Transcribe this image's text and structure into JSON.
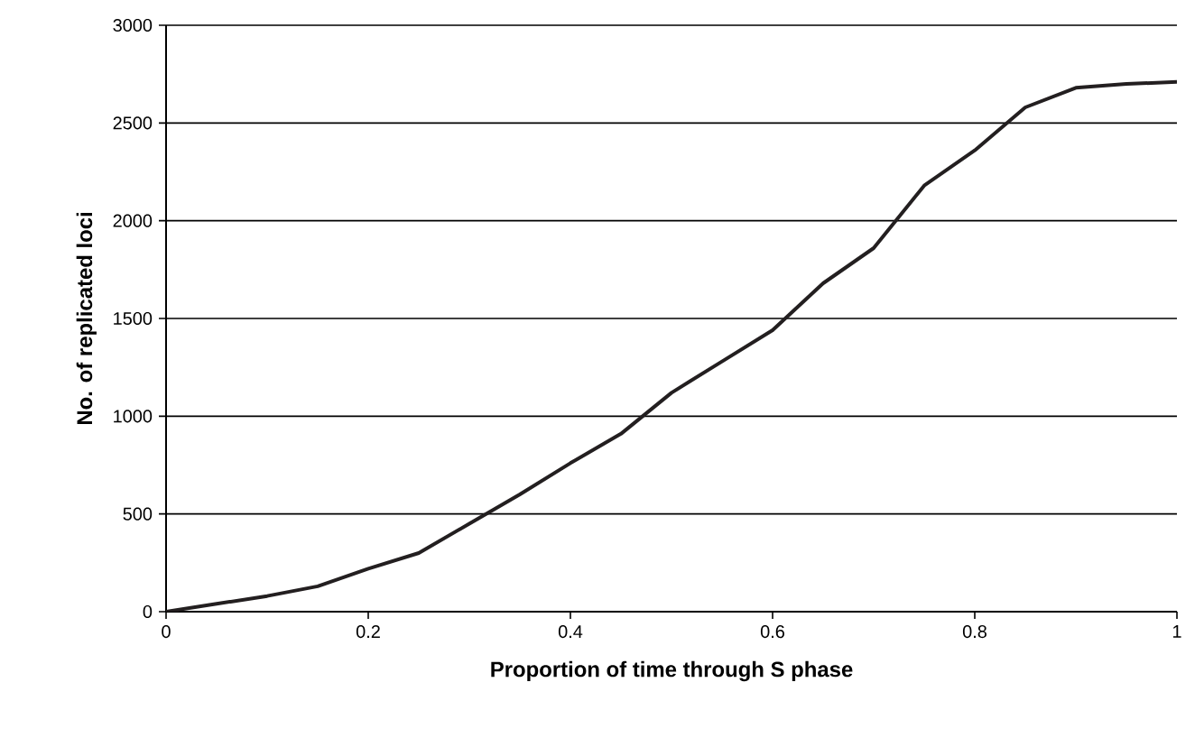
{
  "chart_data": {
    "type": "line",
    "xlabel": "Proportion of time through S phase",
    "ylabel": "No. of replicated loci",
    "x": [
      0,
      0.05,
      0.1,
      0.15,
      0.2,
      0.25,
      0.3,
      0.35,
      0.4,
      0.45,
      0.5,
      0.55,
      0.6,
      0.65,
      0.7,
      0.75,
      0.8,
      0.85,
      0.9,
      0.95,
      1
    ],
    "values": [
      0,
      40,
      80,
      130,
      220,
      300,
      450,
      600,
      760,
      910,
      1120,
      1280,
      1440,
      1680,
      1860,
      2180,
      2360,
      2580,
      2680,
      2700,
      2710
    ],
    "color": "#231f20",
    "xlim": [
      0,
      1
    ],
    "ylim": [
      0,
      3000
    ],
    "xticks": [
      0,
      0.2,
      0.4,
      0.6,
      0.8,
      1
    ],
    "yticks": [
      0,
      500,
      1000,
      1500,
      2000,
      2500,
      3000
    ],
    "grid": "y",
    "marker": "none",
    "line_style": "solid"
  }
}
